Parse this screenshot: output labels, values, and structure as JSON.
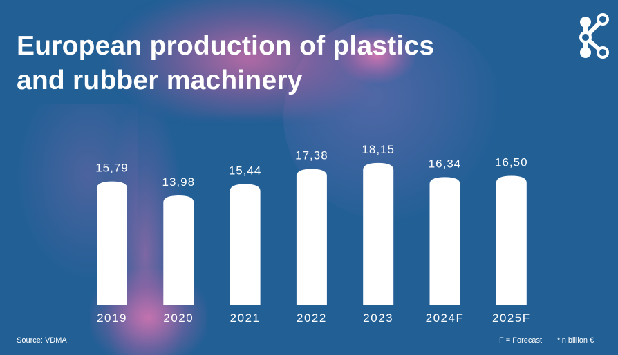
{
  "title": {
    "line1": "European production of plastics",
    "line2": "and rubber machinery"
  },
  "chart_data": {
    "type": "bar",
    "title": "European production of plastics and rubber machinery",
    "categories": [
      "2019",
      "2020",
      "2021",
      "2022",
      "2023",
      "2024F",
      "2025F"
    ],
    "values": [
      15.79,
      13.98,
      15.44,
      17.38,
      18.15,
      16.34,
      16.5
    ],
    "value_labels": [
      "15,79",
      "13,98",
      "15,44",
      "17,38",
      "18,15",
      "16,34",
      "16,50"
    ],
    "bar_color": "#ffffff",
    "grid": false,
    "legend": "none"
  },
  "footer": {
    "source": "Source: VDMA",
    "forecast_note": "F = Forecast",
    "unit_note": "*in billion €"
  },
  "colors": {
    "background": "#215f95",
    "accent_pink": "#e46ea8",
    "text": "#ffffff"
  },
  "logo": {
    "icon": "network-nodes-icon"
  }
}
